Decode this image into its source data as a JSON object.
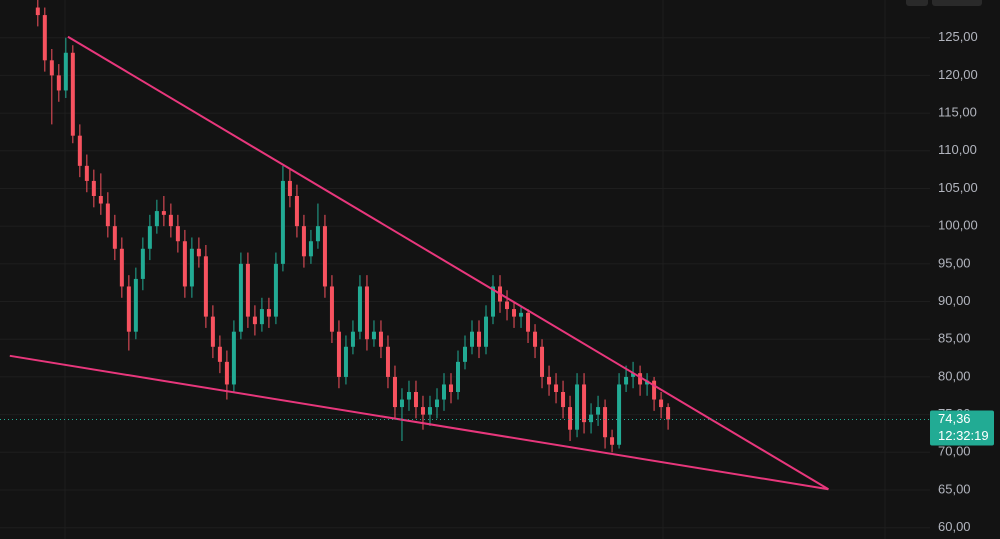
{
  "chart_data": {
    "type": "candlestick",
    "up_color": "#22ab94",
    "down_color": "#f7525f",
    "grid": true,
    "ylim": [
      58.5,
      130
    ],
    "xlim": [
      -5.4,
      127.4
    ],
    "yticks": [
      {
        "value": 60,
        "label": "60,00"
      },
      {
        "value": 65,
        "label": "65,00"
      },
      {
        "value": 70,
        "label": "70,00"
      },
      {
        "value": 75,
        "label": "75,00"
      },
      {
        "value": 80,
        "label": "80,00"
      },
      {
        "value": 85,
        "label": "85,00"
      },
      {
        "value": 90,
        "label": "90,00"
      },
      {
        "value": 95,
        "label": "95,00"
      },
      {
        "value": 100,
        "label": "100,00"
      },
      {
        "value": 105,
        "label": "105,00"
      },
      {
        "value": 110,
        "label": "110,00"
      },
      {
        "value": 115,
        "label": "115,00"
      },
      {
        "value": 120,
        "label": "120,00"
      },
      {
        "value": 125,
        "label": "125,00"
      }
    ],
    "open": [
      129,
      128,
      122,
      120,
      118,
      123,
      112,
      108,
      106,
      104,
      103,
      100,
      97,
      92,
      86,
      93,
      97,
      100,
      102,
      101.5,
      100,
      98,
      92,
      97,
      96,
      88,
      84,
      82,
      79,
      86,
      95,
      88,
      87,
      89,
      88,
      95,
      106,
      104,
      100,
      96,
      98,
      100,
      92,
      86,
      80,
      84,
      86,
      92,
      85,
      86,
      84,
      80,
      76,
      77,
      78,
      76,
      75,
      76,
      77,
      79,
      78,
      82,
      84,
      86,
      84,
      88,
      92,
      90,
      89,
      88,
      88.5,
      86,
      84,
      80,
      79,
      78,
      76,
      73,
      79,
      74,
      75,
      76,
      72,
      71,
      79,
      80,
      80.5,
      79,
      79.5,
      77,
      76
    ],
    "high": [
      130.5,
      129,
      123.5,
      121.5,
      125,
      124,
      113.5,
      109.5,
      107.5,
      107,
      104.5,
      101.5,
      98.5,
      93.5,
      94.5,
      98.5,
      101.5,
      103.5,
      104,
      103,
      101.5,
      99.5,
      98.5,
      98.5,
      97.5,
      89.5,
      85.5,
      83.5,
      87.5,
      96.5,
      96.5,
      89.5,
      90.5,
      90.5,
      96.5,
      108,
      107.5,
      105.5,
      101.5,
      99.5,
      103,
      101.5,
      93.5,
      87.5,
      85.5,
      87.5,
      93.5,
      93.5,
      87.5,
      87.5,
      85.5,
      81.5,
      78.5,
      79.5,
      79.5,
      77.5,
      77.5,
      78.5,
      80.5,
      80.5,
      83.5,
      85.5,
      87.5,
      87.5,
      89.5,
      93.5,
      93.5,
      91.5,
      90,
      89.5,
      89,
      87,
      85,
      81.5,
      80.5,
      79.5,
      77.5,
      80.5,
      80.5,
      76.5,
      77.5,
      77,
      73,
      80.5,
      81.5,
      82,
      81.5,
      80.5,
      80,
      78,
      76.5
    ],
    "low": [
      126.5,
      120.5,
      113.5,
      116.5,
      117,
      111,
      106.5,
      104.5,
      102.5,
      101.5,
      98.5,
      95.5,
      90.5,
      83.5,
      85,
      91.5,
      95.5,
      99,
      100,
      98.5,
      96.5,
      90.5,
      90.5,
      94.5,
      86.5,
      82.5,
      80.5,
      77,
      78,
      85,
      86.5,
      85.5,
      86,
      86.5,
      87,
      94,
      102.5,
      98.5,
      94.5,
      95,
      97,
      90.5,
      84.5,
      78.5,
      79,
      83,
      85,
      83.5,
      84,
      82.5,
      78.5,
      74.5,
      71.5,
      75.5,
      74.5,
      73,
      73.5,
      74.5,
      75.5,
      76.5,
      77,
      81,
      83,
      82.5,
      83,
      87,
      88.5,
      87.5,
      86.5,
      86.5,
      84.5,
      82.5,
      78.5,
      77.5,
      76.5,
      74.5,
      71.5,
      72,
      72.5,
      72.5,
      73.5,
      70.5,
      70,
      70.5,
      78,
      78.5,
      77.5,
      77.5,
      75.5,
      74.5,
      73
    ],
    "close": [
      128,
      122,
      120,
      118,
      123,
      112,
      108,
      106,
      104,
      103,
      100,
      97,
      92,
      86,
      93,
      97,
      100,
      102,
      101.5,
      100,
      98,
      92,
      97,
      96,
      88,
      84,
      82,
      79,
      86,
      95,
      88,
      87,
      89,
      88,
      95,
      106,
      104,
      100,
      96,
      98,
      100,
      92,
      86,
      80,
      84,
      86,
      92,
      85,
      86,
      84,
      80,
      76,
      77,
      78,
      76,
      75,
      76,
      77,
      79,
      78,
      82,
      84,
      86,
      84,
      88,
      92,
      90,
      89,
      88,
      88.5,
      86,
      84,
      80,
      79,
      78,
      76,
      73,
      79,
      74,
      75,
      76,
      72,
      71,
      79,
      80,
      80.5,
      79,
      79.5,
      77,
      76,
      74.36
    ],
    "last_price": {
      "value": 74.36,
      "label": "74,36"
    },
    "countdown": "12:32:19",
    "trendlines": [
      {
        "color": "#e8377c",
        "x": [
          4.3,
          112.9
        ],
        "y": [
          125.13,
          65.1
        ]
      },
      {
        "color": "#e8377c",
        "x": [
          -4,
          112.9
        ],
        "y": [
          82.8,
          65.1
        ]
      }
    ]
  }
}
